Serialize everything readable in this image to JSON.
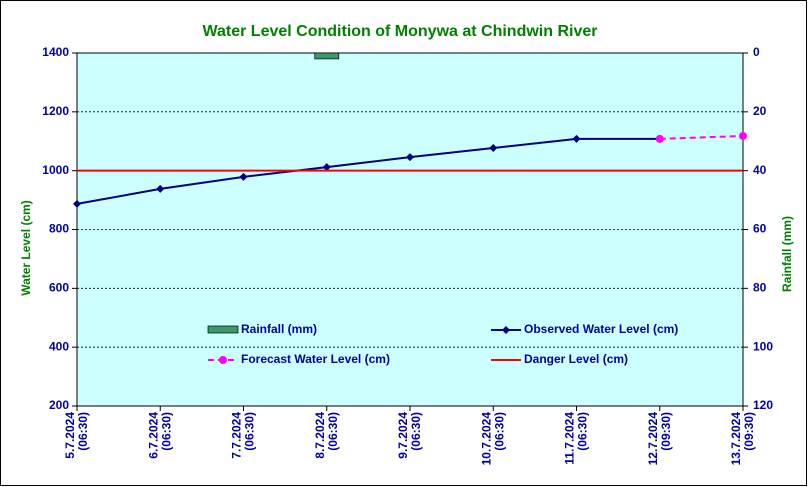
{
  "chart_data": {
    "type": "line",
    "title": "Water Level Condition of Monywa at Chindwin River",
    "ylabel": "Water Level (cm)",
    "y2label": "Rainfall (mm)",
    "categories": [
      [
        "5.7.2024",
        "(06:30)"
      ],
      [
        "6.7.2024",
        "(06:30)"
      ],
      [
        "7.7.2024",
        "(06:30)"
      ],
      [
        "8.7.2024",
        "(06:30)"
      ],
      [
        "9.7.2024",
        "(06:30)"
      ],
      [
        "10.7.2024",
        "(06:30)"
      ],
      [
        "11.7.2024",
        "(06:30)"
      ],
      [
        "12.7.2024",
        "(09:30)"
      ],
      [
        "13.7.2024",
        "(09:30)"
      ]
    ],
    "ylim": [
      200,
      1400
    ],
    "yticks": [
      200,
      400,
      600,
      800,
      1000,
      1200,
      1400
    ],
    "y2lim": [
      0,
      120
    ],
    "y2ticks": [
      0,
      20,
      40,
      60,
      80,
      100,
      120
    ],
    "y2_inverted": true,
    "grid": true,
    "series": [
      {
        "name": "Rainfall (mm)",
        "kind": "bar",
        "axis": "y2",
        "color": "#3a9a6a",
        "values": [
          null,
          null,
          null,
          2,
          null,
          null,
          null,
          null,
          null
        ]
      },
      {
        "name": "Observed Water Level (cm)",
        "kind": "line",
        "marker": "diamond",
        "color": "#000080",
        "values": [
          887,
          938,
          979,
          1012,
          1046,
          1077,
          1108,
          1108,
          null
        ]
      },
      {
        "name": "Forecast Water Level (cm)",
        "kind": "line",
        "marker": "circle",
        "dashed": true,
        "color": "#ff00ff",
        "values": [
          null,
          null,
          null,
          null,
          null,
          null,
          null,
          1108,
          1118
        ]
      },
      {
        "name": "Danger Level (cm)",
        "kind": "line",
        "color": "#ff0000",
        "values": [
          1000,
          1000,
          1000,
          1000,
          1000,
          1000,
          1000,
          1000,
          1000
        ]
      }
    ]
  }
}
